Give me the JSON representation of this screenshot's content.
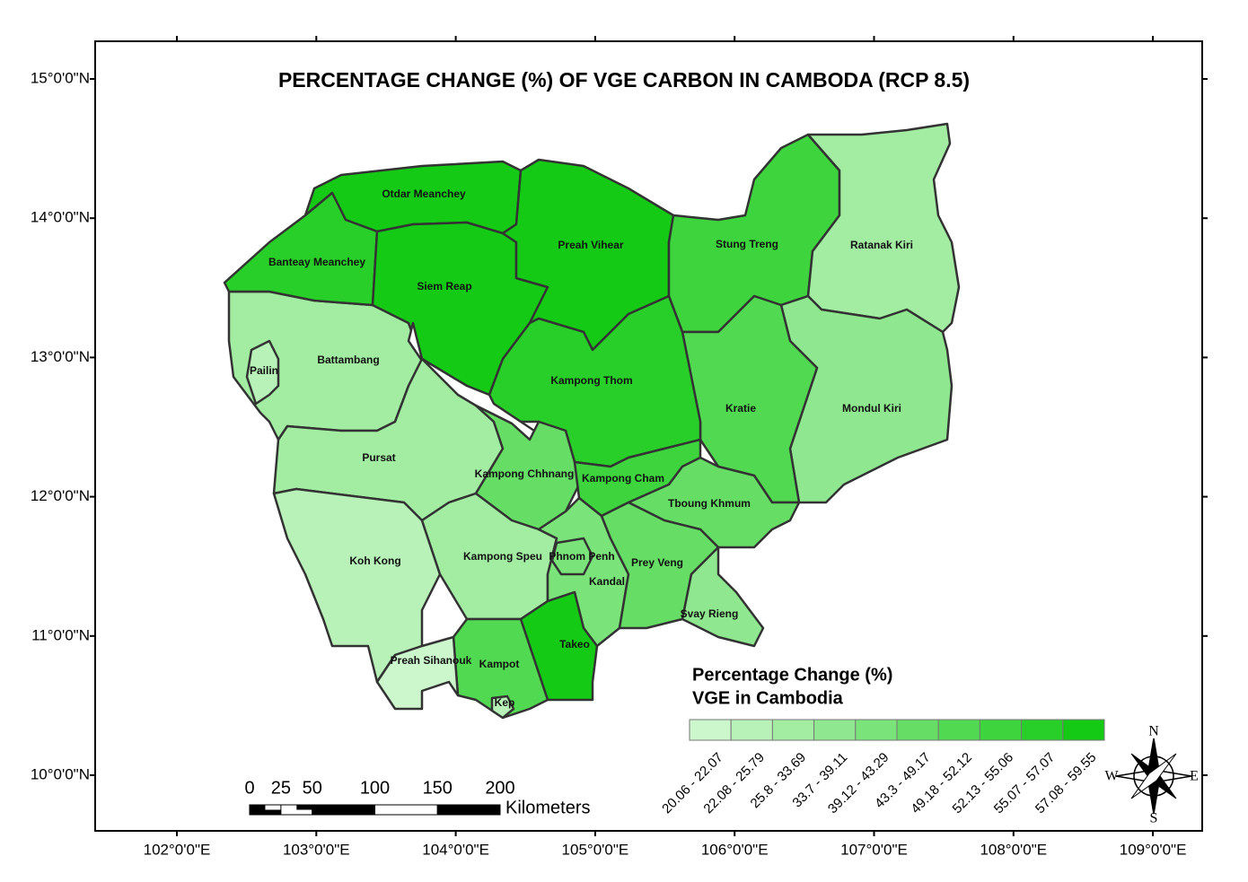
{
  "map": {
    "title": "PERCENTAGE CHANGE (%) OF VGE CARBON IN CAMBODA (RCP 8.5)",
    "xticks": [
      {
        "value": 102,
        "label": "102°0'0\"E"
      },
      {
        "value": 103,
        "label": "103°0'0\"E"
      },
      {
        "value": 104,
        "label": "104°0'0\"E"
      },
      {
        "value": 105,
        "label": "105°0'0\"E"
      },
      {
        "value": 106,
        "label": "106°0'0\"E"
      },
      {
        "value": 107,
        "label": "107°0'0\"E"
      },
      {
        "value": 108,
        "label": "108°0'0\"E"
      },
      {
        "value": 109,
        "label": "109°0'0\"E"
      }
    ],
    "yticks": [
      {
        "value": 15,
        "label": "15°0'0\"N"
      },
      {
        "value": 14,
        "label": "14°0'0\"N"
      },
      {
        "value": 13,
        "label": "13°0'0\"N"
      },
      {
        "value": 12,
        "label": "12°0'0\"N"
      },
      {
        "value": 11,
        "label": "11°0'0\"N"
      },
      {
        "value": 10,
        "label": "10°0'0\"N"
      }
    ],
    "provinces": [
      "Otdar Meanchey",
      "Banteay Meanchey",
      "Siem Reap",
      "Preah Vihear",
      "Stung Treng",
      "Ratanak Kiri",
      "Mondul Kiri",
      "Kratie",
      "Kampong Thom",
      "Battambang",
      "Pailin",
      "Pursat",
      "Kampong Chhnang",
      "Kampong Cham",
      "Tboung Khmum",
      "Koh Kong",
      "Kampong Speu",
      "Phnom Penh",
      "Kandal",
      "Prey Veng",
      "Svay Rieng",
      "Takeo",
      "Kampot",
      "Preah Sihanouk",
      "Kep"
    ],
    "legend": {
      "title": [
        "Percentage Change (%)",
        "VGE in Cambodia"
      ],
      "classes": [
        "20.06 - 22.07",
        "22.08 - 25.79",
        "25.8 - 33.69",
        "33.7 - 39.11",
        "39.12 - 43.29",
        "43.3 - 49.17",
        "49.18 - 52.12",
        "52.13 - 55.06",
        "55.07 - 57.07",
        "57.08 - 59.55"
      ],
      "colors": [
        "#ccf7cc",
        "#b8f2b8",
        "#a3eda3",
        "#8fe88f",
        "#7ae37a",
        "#66de66",
        "#52d952",
        "#3dd43d",
        "#29cf29",
        "#14ca14"
      ]
    },
    "scale_bar": {
      "ticks": [
        0,
        25,
        50,
        100,
        150,
        200
      ],
      "unit": "Kilometers"
    },
    "compass": {
      "n": "N",
      "e": "E",
      "s": "S",
      "w": "W"
    }
  }
}
